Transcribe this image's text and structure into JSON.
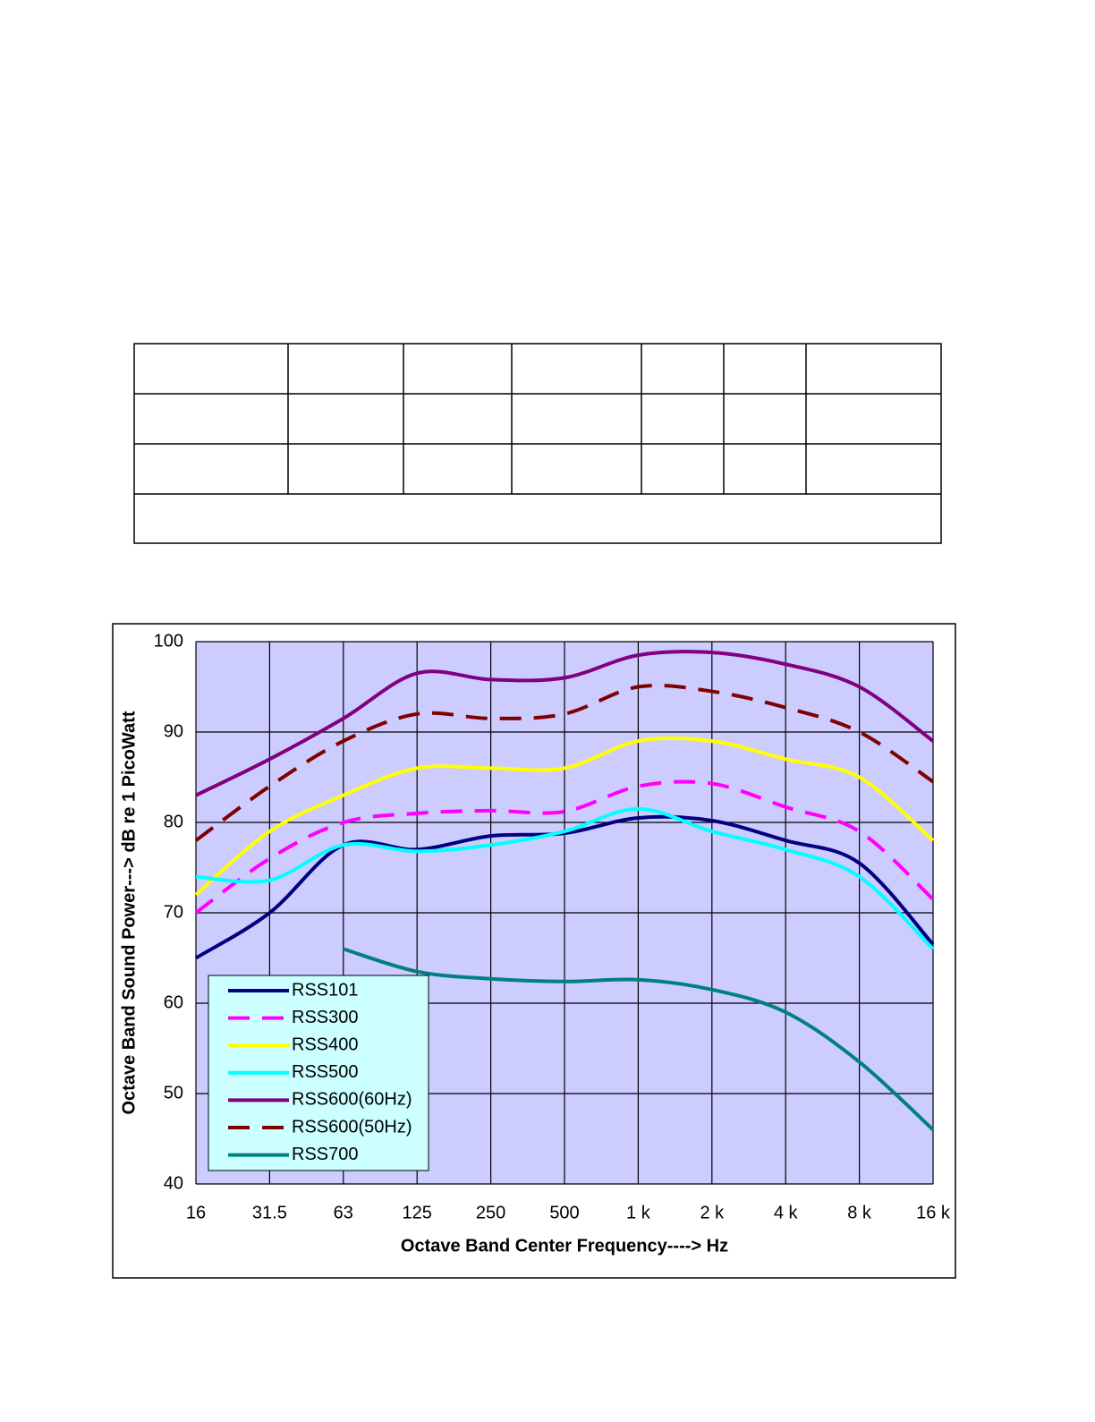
{
  "chart_data": {
    "type": "line",
    "x_label": "Octave Band Center Frequency----> Hz",
    "y_label": "Octave Band Sound Power---> dB re 1 PicoWatt",
    "categories": [
      "16",
      "31.5",
      "63",
      "125",
      "250",
      "500",
      "1 k",
      "2 k",
      "4 k",
      "8 k",
      "16 k"
    ],
    "ylim": [
      40,
      100
    ],
    "yticks": [
      40,
      50,
      60,
      70,
      80,
      90,
      100
    ],
    "grid": true,
    "legend": "lower left",
    "plot_background": "#ccccff",
    "legend_background": "#ccffff",
    "series": [
      {
        "name": "RSS101",
        "color": "#000080",
        "dashed": false,
        "values": [
          65,
          70,
          77.5,
          77,
          78.5,
          78.8,
          80.5,
          80.2,
          78,
          75.5,
          66.5
        ]
      },
      {
        "name": "RSS300",
        "color": "#ff00ff",
        "dashed": true,
        "values": [
          70,
          76,
          80,
          81,
          81.3,
          81.2,
          84,
          84.3,
          81.7,
          79,
          71.5
        ]
      },
      {
        "name": "RSS400",
        "color": "#ffff00",
        "dashed": false,
        "values": [
          72,
          79,
          83,
          86,
          86,
          86,
          89,
          89,
          87,
          85,
          78
        ]
      },
      {
        "name": "RSS500",
        "color": "#00ffff",
        "dashed": false,
        "values": [
          74,
          73.6,
          77.5,
          76.8,
          77.5,
          79,
          81.5,
          79,
          77,
          74,
          66
        ]
      },
      {
        "name": "RSS600(60Hz)",
        "color": "#800080",
        "dashed": false,
        "values": [
          83,
          87,
          91.5,
          96.5,
          95.8,
          96,
          98.5,
          98.8,
          97.5,
          95,
          89
        ]
      },
      {
        "name": "RSS600(50Hz)",
        "color": "#800000",
        "dashed": true,
        "values": [
          78,
          84,
          89,
          92,
          91.5,
          92,
          95,
          94.5,
          92.7,
          90,
          84.5
        ]
      },
      {
        "name": "RSS700",
        "color": "#008080",
        "dashed": false,
        "values": [
          null,
          null,
          66,
          63.5,
          62.7,
          62.4,
          62.6,
          61.5,
          59,
          53.5,
          46
        ]
      }
    ]
  }
}
